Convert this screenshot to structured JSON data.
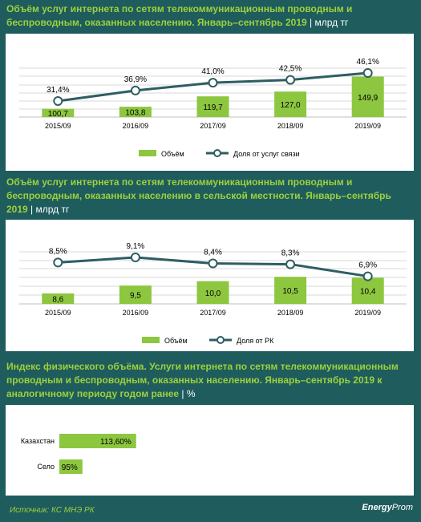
{
  "chart1": {
    "title": "Объём услуг интернета по сетям телекоммуникационным проводным и беспроводным, оказанных населению. Январь–сентябрь 2019",
    "unit": "| млрд тг",
    "type": "bar+line",
    "categories": [
      "2015/09",
      "2016/09",
      "2017/09",
      "2018/09",
      "2019/09"
    ],
    "bar_values": [
      "100,7",
      "103,8",
      "119,7",
      "127,0",
      "149,9"
    ],
    "bar_numeric": [
      100.7,
      103.8,
      119.7,
      127.0,
      149.9
    ],
    "line_values": [
      "31,4%",
      "36,9%",
      "41,0%",
      "42,5%",
      "46,1%"
    ],
    "line_numeric": [
      31.4,
      36.9,
      41.0,
      42.5,
      46.1
    ],
    "legend": [
      "Объём",
      "Доля от услуг связи"
    ],
    "colors": {
      "bar": "#8dc63f",
      "line": "#2e5e62"
    }
  },
  "chart2": {
    "title": "Объём услуг интернета по сетям телекоммуникационным проводным и беспроводным, оказанных населению в сельской местности. Январь–сентябрь 2019",
    "unit": "| млрд тг",
    "type": "bar+line",
    "categories": [
      "2015/09",
      "2016/09",
      "2017/09",
      "2018/09",
      "2019/09"
    ],
    "bar_values": [
      "8,6",
      "9,5",
      "10,0",
      "10,5",
      "10,4"
    ],
    "bar_numeric": [
      8.6,
      9.5,
      10.0,
      10.5,
      10.4
    ],
    "line_values": [
      "8,5%",
      "9,1%",
      "8,4%",
      "8,3%",
      "6,9%"
    ],
    "line_numeric": [
      8.5,
      9.1,
      8.4,
      8.3,
      6.9
    ],
    "legend": [
      "Объём",
      "Доля от РК"
    ],
    "colors": {
      "bar": "#8dc63f",
      "line": "#2e5e62"
    }
  },
  "chart3": {
    "title": "Индекс физического объёма. Услуги интернета по сетям телекоммуникационным проводным и беспроводным, оказанных населению. Январь–сентябрь 2019 к аналогичному периоду годом ранее",
    "unit": "| %",
    "type": "bar",
    "categories": [
      "Казахстан",
      "Село"
    ],
    "bar_values": [
      "113,60%",
      "95%"
    ],
    "bar_numeric": [
      113.6,
      95
    ],
    "colors": {
      "bar": "#8dc63f"
    }
  },
  "chart_data": [
    {
      "type": "bar",
      "categories": [
        "2015/09",
        "2016/09",
        "2017/09",
        "2018/09",
        "2019/09"
      ],
      "series": [
        {
          "name": "Объём",
          "values": [
            100.7,
            103.8,
            119.7,
            127.0,
            149.9
          ]
        },
        {
          "name": "Доля от услуг связи",
          "values": [
            31.4,
            36.9,
            41.0,
            42.5,
            46.1
          ]
        }
      ]
    },
    {
      "type": "bar",
      "categories": [
        "2015/09",
        "2016/09",
        "2017/09",
        "2018/09",
        "2019/09"
      ],
      "series": [
        {
          "name": "Объём",
          "values": [
            8.6,
            9.5,
            10.0,
            10.5,
            10.4
          ]
        },
        {
          "name": "Доля от РК",
          "values": [
            8.5,
            9.1,
            8.4,
            8.3,
            6.9
          ]
        }
      ]
    },
    {
      "type": "bar",
      "categories": [
        "Казахстан",
        "Село"
      ],
      "values": [
        113.6,
        95
      ]
    }
  ],
  "footer": {
    "source": "Источник: КС МНЭ РК",
    "logo_bold": "Energy",
    "logo_light": "Prom"
  }
}
